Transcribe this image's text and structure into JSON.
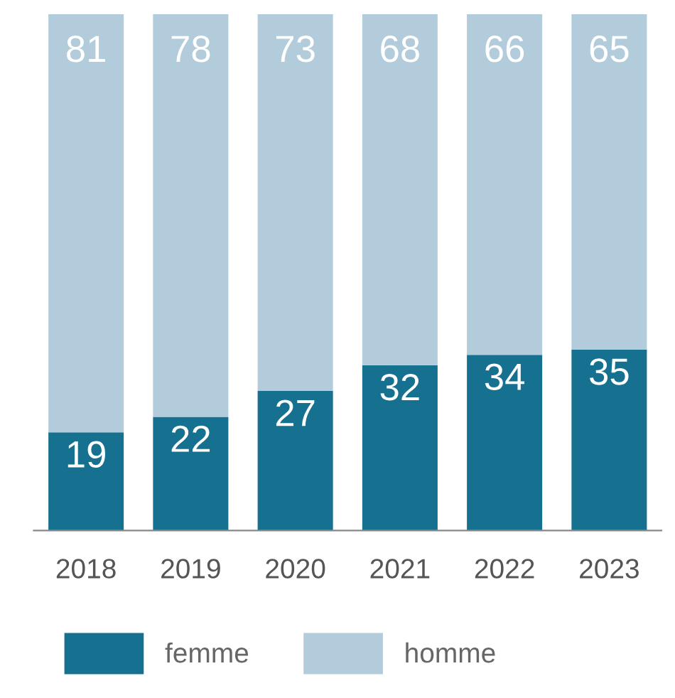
{
  "chart_data": {
    "type": "bar",
    "stacked": true,
    "categories": [
      "2018",
      "2019",
      "2020",
      "2021",
      "2022",
      "2023"
    ],
    "series": [
      {
        "name": "femme",
        "color": "#16708f",
        "values": [
          19,
          22,
          27,
          32,
          34,
          35
        ]
      },
      {
        "name": "homme",
        "color": "#b2ccdc",
        "values": [
          81,
          78,
          73,
          68,
          66,
          65
        ]
      }
    ],
    "data_labels": true,
    "legend": "bottom left",
    "tick_labels": "x",
    "grid": false
  }
}
